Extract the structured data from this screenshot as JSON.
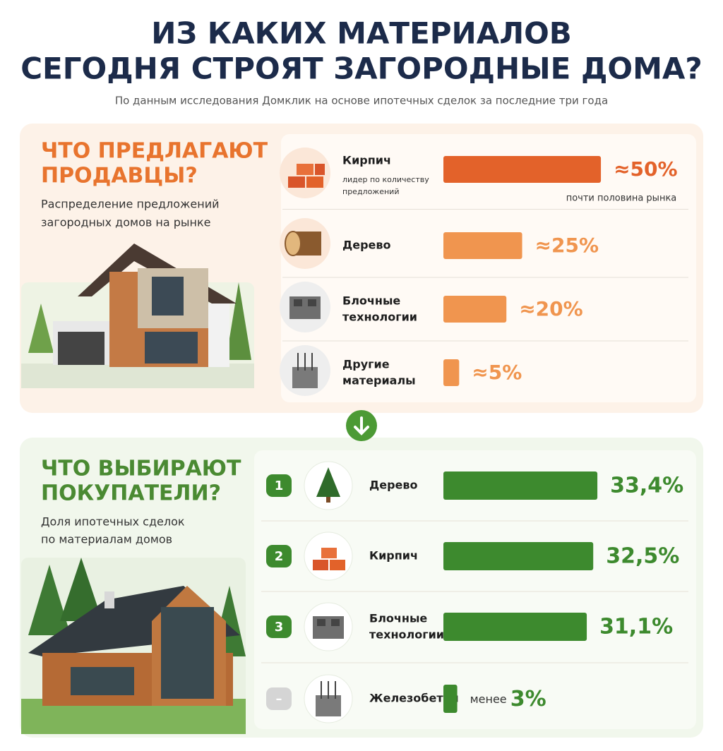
{
  "header": {
    "title_lines": [
      "ИЗ КАКИХ МАТЕРИАЛОВ",
      "СЕГОДНЯ СТРОЯТ ЗАГОРОДНЫЕ ДОМА?"
    ],
    "subtitle": "По данным исследования Домклик на основе ипотечных сделок за последние три года"
  },
  "chart_data": [
    {
      "type": "bar",
      "orientation": "horizontal",
      "title_lines": [
        "ЧТО ПРЕДЛАГАЮТ",
        "ПРОДАВЦЫ?"
      ],
      "subtitle_lines": [
        "Распределение предложений",
        "загородных домов на рынке"
      ],
      "categories": [
        [
          "Кирпич"
        ],
        [
          "Дерево"
        ],
        [
          "Блочные",
          "технологии"
        ],
        [
          "Другие",
          "материалы"
        ]
      ],
      "category_notes": [
        [
          "лидер по количеству",
          "предложений"
        ],
        null,
        null,
        null
      ],
      "values": [
        50,
        25,
        20,
        5
      ],
      "value_labels": [
        "≈50%",
        "≈25%",
        "≈20%",
        "≈5%"
      ],
      "annotation": "почти половина рынка",
      "colors": [
        "#e3622a",
        "#f0954f",
        "#f0954f",
        "#f0954f"
      ],
      "heading_color": "#e8742e",
      "xlim": [
        0,
        52
      ]
    },
    {
      "type": "bar",
      "orientation": "horizontal",
      "title_lines": [
        "ЧТО ВЫБИРАЮТ",
        "ПОКУПАТЕЛИ?"
      ],
      "subtitle_lines": [
        "Доля ипотечных сделок",
        "по материалам домов"
      ],
      "ranks": [
        "1",
        "2",
        "3",
        "–"
      ],
      "categories": [
        [
          "Дерево"
        ],
        [
          "Кирпич"
        ],
        [
          "Блочные",
          "технологии"
        ],
        [
          "Железобетон"
        ]
      ],
      "values": [
        33.4,
        32.5,
        31.1,
        3
      ],
      "value_labels": [
        "33,4%",
        "32,5%",
        "31,1%",
        "менее 3%"
      ],
      "color": "#3d8a2e",
      "heading_color": "#4a8a32",
      "xlim": [
        0,
        34
      ]
    }
  ]
}
